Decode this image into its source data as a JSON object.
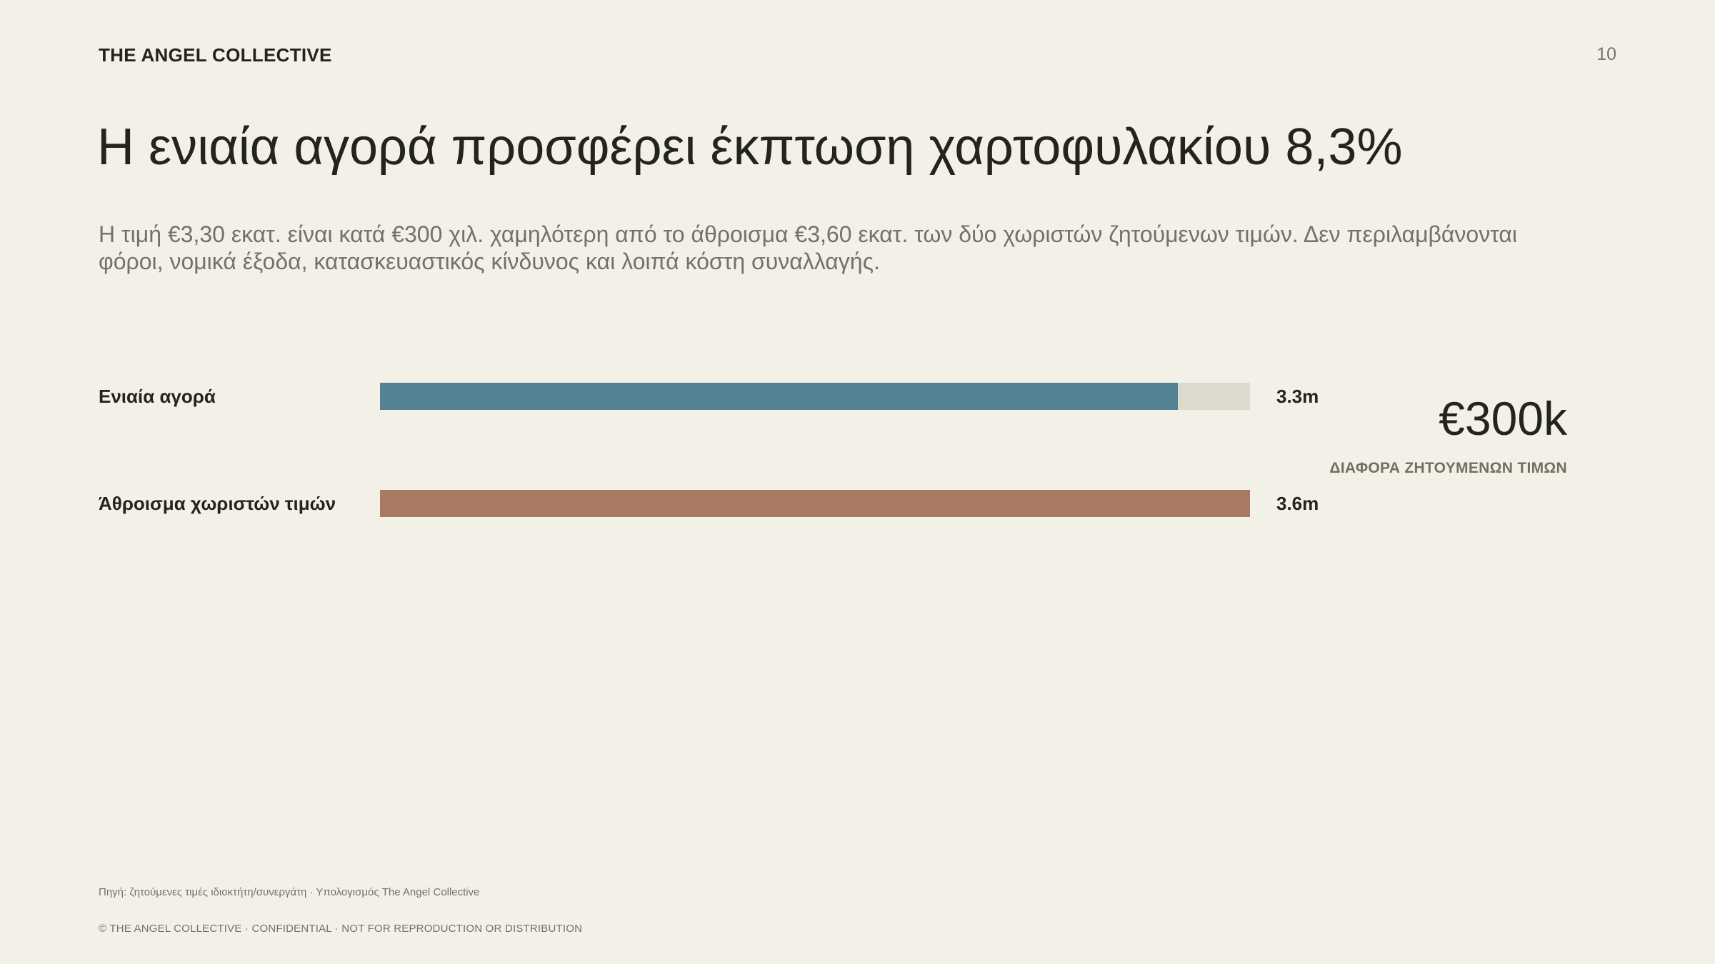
{
  "header": {
    "brand": "THE ANGEL COLLECTIVE",
    "page_number": "10"
  },
  "slide": {
    "title": "Η ενιαία αγορά προσφέρει έκπτωση χαρτοφυλακίου 8,3%",
    "subtitle": "Η τιμή €3,30 εκατ. είναι κατά €300 χιλ. χαμηλότερη από το άθροισμα €3,60 εκατ. των δύο χωριστών ζητούμενων τιμών. Δεν περιλαμβάνονται φόροι, νομικά έξοδα, κατασκευαστικός κίνδυνος και λοιπά κόστη συναλλαγής."
  },
  "chart_data": {
    "type": "bar",
    "orientation": "horizontal",
    "categories": [
      "Ενιαία αγορά",
      "Άθροισμα χωριστών τιμών"
    ],
    "values": [
      3.3,
      3.6
    ],
    "value_labels": [
      "3.3m",
      "3.6m"
    ],
    "xlim": [
      0,
      3.6
    ],
    "colors": [
      "#538295",
      "#a97a62"
    ],
    "track_color": "#dcd9cd",
    "grid": false
  },
  "kpi": {
    "value": "€300k",
    "label": "ΔΙΑΦΟΡΑ ΖΗΤΟΥΜΕΝΩΝ ΤΙΜΩΝ"
  },
  "footer": {
    "source": "Πηγή: ζητούμενες τιμές ιδιοκτήτη/συνεργάτη · Υπολογισμός The Angel Collective",
    "copyright": "© THE ANGEL COLLECTIVE · CONFIDENTIAL · NOT FOR REPRODUCTION OR DISTRIBUTION"
  }
}
